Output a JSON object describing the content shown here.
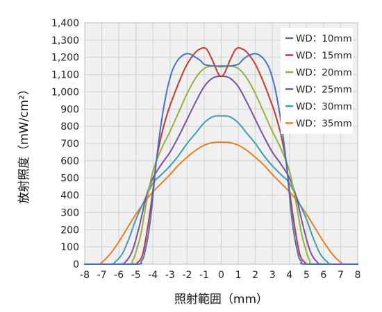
{
  "chart_data": {
    "type": "line",
    "title": "",
    "xlabel": "照射範囲（mm）",
    "ylabel": "放射照度（mW/cm²）",
    "xlim": [
      -8,
      8
    ],
    "ylim": [
      0,
      1400
    ],
    "x_ticks": [
      -8,
      -7,
      -6,
      -5,
      -4,
      -3,
      -2,
      -1,
      0,
      1,
      2,
      3,
      4,
      5,
      6,
      7,
      8
    ],
    "y_ticks": [
      0,
      100,
      200,
      300,
      400,
      500,
      600,
      700,
      800,
      900,
      1000,
      1100,
      1200,
      1300,
      1400
    ],
    "y_tick_labels": [
      "0",
      "100",
      "200",
      "300",
      "400",
      "500",
      "600",
      "700",
      "800",
      "900",
      "1,000",
      "1,100",
      "1,200",
      "1,300",
      "1,400"
    ],
    "grid": true,
    "legend_position": "top-right",
    "series": [
      {
        "name": "WD：10mm",
        "color": "#4472c4",
        "points": [
          [
            -8,
            0
          ],
          [
            -5,
            0
          ],
          [
            -4.7,
            15
          ],
          [
            -4.5,
            60
          ],
          [
            -4.2,
            220
          ],
          [
            -4,
            400
          ],
          [
            -3.8,
            600
          ],
          [
            -3.5,
            830
          ],
          [
            -3.2,
            1000
          ],
          [
            -3,
            1080
          ],
          [
            -2.8,
            1140
          ],
          [
            -2.5,
            1190
          ],
          [
            -2.2,
            1215
          ],
          [
            -2,
            1222
          ],
          [
            -1.8,
            1218
          ],
          [
            -1.5,
            1200
          ],
          [
            -1.2,
            1180
          ],
          [
            -1,
            1160
          ],
          [
            -0.5,
            1150
          ],
          [
            0,
            1150
          ],
          [
            0.5,
            1150
          ],
          [
            1,
            1160
          ],
          [
            1.2,
            1180
          ],
          [
            1.5,
            1205
          ],
          [
            1.8,
            1218
          ],
          [
            2,
            1222
          ],
          [
            2.2,
            1215
          ],
          [
            2.5,
            1190
          ],
          [
            2.8,
            1140
          ],
          [
            3,
            1080
          ],
          [
            3.2,
            1000
          ],
          [
            3.5,
            830
          ],
          [
            3.8,
            600
          ],
          [
            4,
            400
          ],
          [
            4.2,
            220
          ],
          [
            4.5,
            60
          ],
          [
            4.7,
            15
          ],
          [
            5,
            0
          ],
          [
            8,
            0
          ]
        ]
      },
      {
        "name": "WD：15mm",
        "color": "#c0392b",
        "points": [
          [
            -8,
            0
          ],
          [
            -5.2,
            0
          ],
          [
            -4.9,
            10
          ],
          [
            -4.6,
            60
          ],
          [
            -4.3,
            220
          ],
          [
            -4,
            430
          ],
          [
            -3.8,
            600
          ],
          [
            -3.5,
            750
          ],
          [
            -3.2,
            860
          ],
          [
            -3,
            920
          ],
          [
            -2.5,
            1050
          ],
          [
            -2,
            1160
          ],
          [
            -1.5,
            1230
          ],
          [
            -1.2,
            1250
          ],
          [
            -1,
            1255
          ],
          [
            -0.8,
            1240
          ],
          [
            -0.5,
            1180
          ],
          [
            -0.2,
            1110
          ],
          [
            0,
            1090
          ],
          [
            0.2,
            1110
          ],
          [
            0.5,
            1180
          ],
          [
            0.8,
            1240
          ],
          [
            1,
            1255
          ],
          [
            1.2,
            1250
          ],
          [
            1.5,
            1230
          ],
          [
            2,
            1160
          ],
          [
            2.5,
            1050
          ],
          [
            3,
            920
          ],
          [
            3.2,
            860
          ],
          [
            3.5,
            750
          ],
          [
            3.8,
            600
          ],
          [
            4,
            430
          ],
          [
            4.3,
            220
          ],
          [
            4.6,
            60
          ],
          [
            4.9,
            10
          ],
          [
            5.2,
            0
          ],
          [
            8,
            0
          ]
        ]
      },
      {
        "name": "WD：20mm",
        "color": "#8db33a",
        "points": [
          [
            -8,
            0
          ],
          [
            -5.5,
            0
          ],
          [
            -5.2,
            20
          ],
          [
            -5,
            70
          ],
          [
            -4.7,
            180
          ],
          [
            -4.4,
            350
          ],
          [
            -4,
            540
          ],
          [
            -3.5,
            670
          ],
          [
            -3,
            770
          ],
          [
            -2.5,
            880
          ],
          [
            -2,
            990
          ],
          [
            -1.5,
            1080
          ],
          [
            -1,
            1135
          ],
          [
            -0.5,
            1150
          ],
          [
            0,
            1145
          ],
          [
            0.5,
            1150
          ],
          [
            1,
            1135
          ],
          [
            1.5,
            1080
          ],
          [
            2,
            990
          ],
          [
            2.5,
            880
          ],
          [
            3,
            770
          ],
          [
            3.5,
            670
          ],
          [
            4,
            540
          ],
          [
            4.4,
            350
          ],
          [
            4.7,
            180
          ],
          [
            5,
            70
          ],
          [
            5.2,
            20
          ],
          [
            5.5,
            0
          ],
          [
            8,
            0
          ]
        ]
      },
      {
        "name": "WD：25mm",
        "color": "#7b4f9d",
        "points": [
          [
            -8,
            0
          ],
          [
            -6,
            0
          ],
          [
            -5.6,
            15
          ],
          [
            -5.2,
            80
          ],
          [
            -4.8,
            220
          ],
          [
            -4.4,
            390
          ],
          [
            -4,
            500
          ],
          [
            -3.5,
            580
          ],
          [
            -3,
            650
          ],
          [
            -2.5,
            740
          ],
          [
            -2,
            840
          ],
          [
            -1.5,
            940
          ],
          [
            -1,
            1030
          ],
          [
            -0.5,
            1080
          ],
          [
            0,
            1090
          ],
          [
            0.5,
            1080
          ],
          [
            1,
            1030
          ],
          [
            1.5,
            940
          ],
          [
            2,
            840
          ],
          [
            2.5,
            740
          ],
          [
            3,
            650
          ],
          [
            3.5,
            580
          ],
          [
            4,
            500
          ],
          [
            4.4,
            390
          ],
          [
            4.8,
            220
          ],
          [
            5.2,
            80
          ],
          [
            5.6,
            15
          ],
          [
            6,
            0
          ],
          [
            8,
            0
          ]
        ]
      },
      {
        "name": "WD：30mm",
        "color": "#3a9eae",
        "points": [
          [
            -8,
            0
          ],
          [
            -6.5,
            0
          ],
          [
            -6.2,
            15
          ],
          [
            -5.8,
            60
          ],
          [
            -5.4,
            150
          ],
          [
            -5,
            260
          ],
          [
            -4.5,
            370
          ],
          [
            -4,
            470
          ],
          [
            -3.5,
            520
          ],
          [
            -3,
            570
          ],
          [
            -2.5,
            630
          ],
          [
            -2,
            700
          ],
          [
            -1.5,
            760
          ],
          [
            -1,
            820
          ],
          [
            -0.5,
            855
          ],
          [
            0,
            860
          ],
          [
            0.5,
            855
          ],
          [
            1,
            820
          ],
          [
            1.5,
            760
          ],
          [
            2,
            700
          ],
          [
            2.5,
            630
          ],
          [
            3,
            570
          ],
          [
            3.5,
            520
          ],
          [
            4,
            470
          ],
          [
            4.5,
            370
          ],
          [
            5,
            260
          ],
          [
            5.4,
            150
          ],
          [
            5.8,
            60
          ],
          [
            6.2,
            15
          ],
          [
            6.5,
            0
          ],
          [
            8,
            0
          ]
        ]
      },
      {
        "name": "WD：35mm",
        "color": "#e67e22",
        "points": [
          [
            -8,
            0
          ],
          [
            -7.2,
            0
          ],
          [
            -7,
            10
          ],
          [
            -6.5,
            60
          ],
          [
            -6,
            130
          ],
          [
            -5.5,
            210
          ],
          [
            -5,
            290
          ],
          [
            -4.5,
            360
          ],
          [
            -4,
            420
          ],
          [
            -3.5,
            470
          ],
          [
            -3,
            520
          ],
          [
            -2.5,
            575
          ],
          [
            -2,
            620
          ],
          [
            -1.5,
            660
          ],
          [
            -1,
            690
          ],
          [
            -0.5,
            705
          ],
          [
            0,
            708
          ],
          [
            0.5,
            705
          ],
          [
            1,
            690
          ],
          [
            1.5,
            660
          ],
          [
            2,
            620
          ],
          [
            2.5,
            575
          ],
          [
            3,
            520
          ],
          [
            3.5,
            470
          ],
          [
            4,
            420
          ],
          [
            4.5,
            360
          ],
          [
            5,
            290
          ],
          [
            5.5,
            210
          ],
          [
            6,
            130
          ],
          [
            6.5,
            60
          ],
          [
            7,
            10
          ],
          [
            7.2,
            0
          ],
          [
            8,
            0
          ]
        ]
      }
    ]
  }
}
